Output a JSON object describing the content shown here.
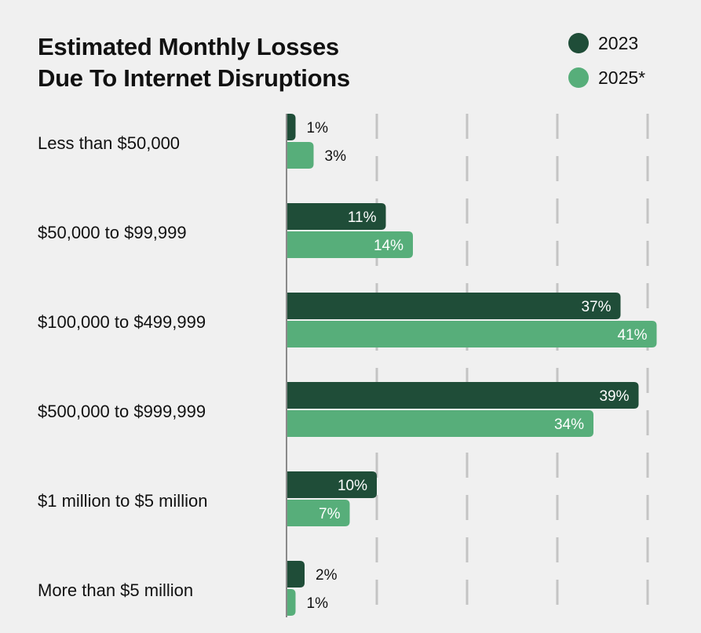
{
  "chart_data": {
    "type": "bar",
    "orientation": "horizontal",
    "title_lines": [
      "Estimated Monthly Losses",
      "Due To Internet Disruptions"
    ],
    "categories": [
      "Less than $50,000",
      "$50,000 to $99,999",
      "$100,000 to $499,999",
      "$500,000 to $999,999",
      "$1 million to $5 million",
      "More than $5 million"
    ],
    "series": [
      {
        "name": "2023",
        "color": "#1f4d38",
        "values": [
          1,
          11,
          37,
          39,
          10,
          2
        ],
        "labels": [
          "1%",
          "11%",
          "37%",
          "39%",
          "10%",
          "2%"
        ]
      },
      {
        "name": "2025*",
        "color": "#57ae7a",
        "values": [
          3,
          14,
          41,
          34,
          7,
          1
        ],
        "labels": [
          "3%",
          "14%",
          "41%",
          "34%",
          "7%",
          "1%"
        ]
      }
    ],
    "xlim": [
      0,
      40
    ],
    "gridlines": [
      10,
      20,
      30,
      40
    ],
    "legend_position": "top-right"
  }
}
